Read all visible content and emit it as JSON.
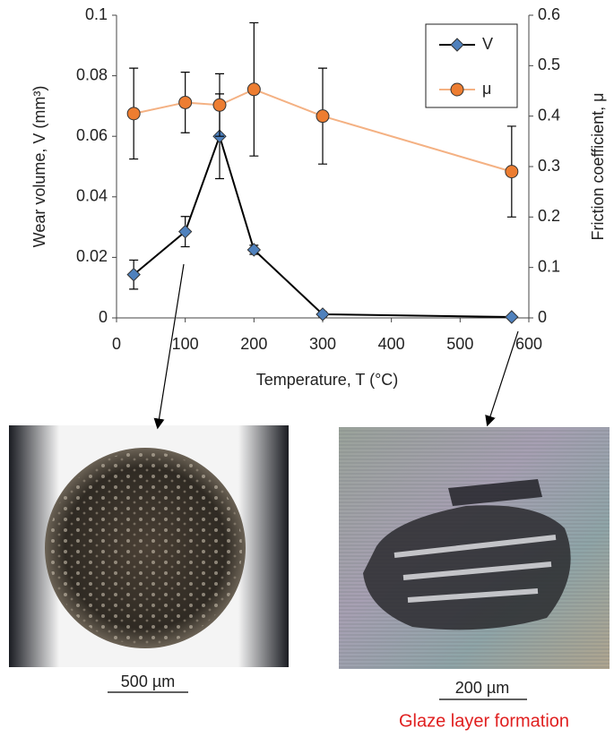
{
  "chart_data": {
    "type": "line",
    "x_label": "Temperature, T (°C)",
    "y_label": "Wear volume, V (mm³)",
    "y2_label": "Friction coefficient, μ",
    "x": [
      25,
      100,
      150,
      200,
      300,
      575
    ],
    "series": [
      {
        "name": "V",
        "color": "#4f81bd",
        "line_color": "#000000",
        "values": [
          0.0143,
          0.0285,
          0.06,
          0.0225,
          0.0012,
          0.0003
        ],
        "errors": [
          0.0048,
          0.005,
          0.014,
          0.0015,
          0.0008,
          0.0004
        ]
      },
      {
        "name": "μ",
        "color": "#ed7d31",
        "line_color": "#f4b183",
        "axis": "y2",
        "values": [
          0.405,
          0.427,
          0.422,
          0.453,
          0.4,
          0.29
        ],
        "errors": [
          0.09,
          0.06,
          0.062,
          0.132,
          0.095,
          0.09
        ]
      }
    ],
    "xlim": [
      0,
      600
    ],
    "xticks": [
      0,
      100,
      200,
      300,
      400,
      500,
      600
    ],
    "ylim": [
      0,
      0.1
    ],
    "yticks": [
      0,
      0.02,
      0.04,
      0.06,
      0.08,
      0.1
    ],
    "y2lim": [
      0,
      0.6
    ],
    "y2ticks": [
      0,
      0.1,
      0.2,
      0.3,
      0.4,
      0.5,
      0.6
    ],
    "legend": "upper right",
    "annotations": {
      "left_scale": "500 µm",
      "right_scale": "200 µm",
      "caption": "Glaze layer formation"
    }
  }
}
